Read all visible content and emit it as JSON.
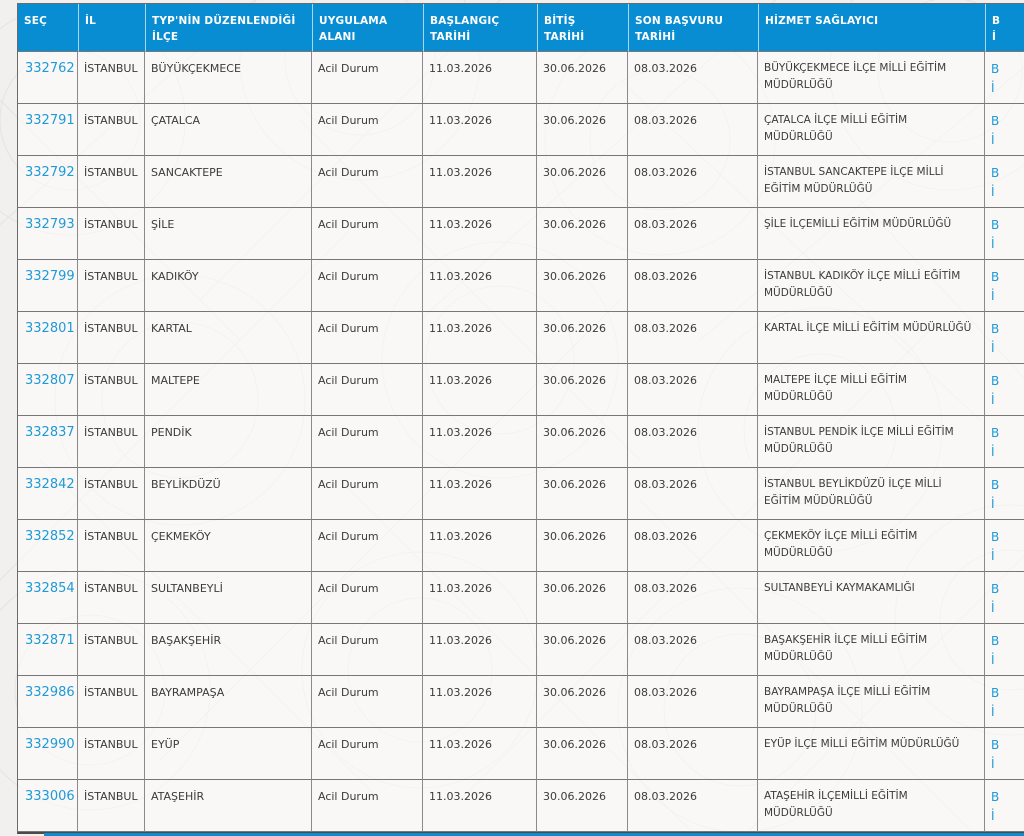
{
  "accent": {
    "header_blue": "#088dd2",
    "link_blue": "#1f9ad7",
    "bottom_bar_color": "#088dd2"
  },
  "table": {
    "columns": [
      {
        "label": "SEÇ"
      },
      {
        "label": "İL"
      },
      {
        "label": "TYP'NİN DÜZENLENDİĞİ\nİLÇE"
      },
      {
        "label": "UYGULAMA\nALANI"
      },
      {
        "label": "BAŞLANGIÇ\nTARİHİ"
      },
      {
        "label": "BİTİŞ\nTARİHİ"
      },
      {
        "label": "SON BAŞVURU\nTARİHİ"
      },
      {
        "label": "HİZMET SAĞLAYICI"
      },
      {
        "label": "B\nİ"
      }
    ],
    "rows": [
      {
        "sec": "332762",
        "il": "İSTANBUL",
        "ilce": "BÜYÜKÇEKMECE",
        "uygulama_alani": "Acil Durum",
        "baslangic": "11.03.2026",
        "bitis": "30.06.2026",
        "son_basvuru": "08.03.2026",
        "hizmet_saglayici": "BÜYÜKÇEKMECE İLÇE MİLLİ EĞİTİM MÜDÜRLÜĞÜ",
        "action1": "B",
        "action2": "İ"
      },
      {
        "sec": "332791",
        "il": "İSTANBUL",
        "ilce": "ÇATALCA",
        "uygulama_alani": "Acil Durum",
        "baslangic": "11.03.2026",
        "bitis": "30.06.2026",
        "son_basvuru": "08.03.2026",
        "hizmet_saglayici": "ÇATALCA İLÇE MİLLİ EĞİTİM MÜDÜRLÜĞÜ",
        "action1": "B",
        "action2": "İ"
      },
      {
        "sec": "332792",
        "il": "İSTANBUL",
        "ilce": "SANCAKTEPE",
        "uygulama_alani": "Acil Durum",
        "baslangic": "11.03.2026",
        "bitis": "30.06.2026",
        "son_basvuru": "08.03.2026",
        "hizmet_saglayici": "İSTANBUL SANCAKTEPE İLÇE MİLLİ EĞİTİM MÜDÜRLÜĞÜ",
        "action1": "B",
        "action2": "İ"
      },
      {
        "sec": "332793",
        "il": "İSTANBUL",
        "ilce": "ŞİLE",
        "uygulama_alani": "Acil Durum",
        "baslangic": "11.03.2026",
        "bitis": "30.06.2026",
        "son_basvuru": "08.03.2026",
        "hizmet_saglayici": "ŞİLE İLÇEMİLLİ EĞİTİM MÜDÜRLÜĞÜ",
        "action1": "B",
        "action2": "İ"
      },
      {
        "sec": "332799",
        "il": "İSTANBUL",
        "ilce": "KADIKÖY",
        "uygulama_alani": "Acil Durum",
        "baslangic": "11.03.2026",
        "bitis": "30.06.2026",
        "son_basvuru": "08.03.2026",
        "hizmet_saglayici": "İSTANBUL KADIKÖY İLÇE MİLLİ EĞİTİM MÜDÜRLÜĞÜ",
        "action1": "B",
        "action2": "İ"
      },
      {
        "sec": "332801",
        "il": "İSTANBUL",
        "ilce": "KARTAL",
        "uygulama_alani": "Acil Durum",
        "baslangic": "11.03.2026",
        "bitis": "30.06.2026",
        "son_basvuru": "08.03.2026",
        "hizmet_saglayici": "KARTAL İLÇE MİLLİ EĞİTİM MÜDÜRLÜĞÜ",
        "action1": "B",
        "action2": "İ"
      },
      {
        "sec": "332807",
        "il": "İSTANBUL",
        "ilce": "MALTEPE",
        "uygulama_alani": "Acil Durum",
        "baslangic": "11.03.2026",
        "bitis": "30.06.2026",
        "son_basvuru": "08.03.2026",
        "hizmet_saglayici": "MALTEPE İLÇE MİLLİ EĞİTİM MÜDÜRLÜĞÜ",
        "action1": "B",
        "action2": "İ"
      },
      {
        "sec": "332837",
        "il": "İSTANBUL",
        "ilce": "PENDİK",
        "uygulama_alani": "Acil Durum",
        "baslangic": "11.03.2026",
        "bitis": "30.06.2026",
        "son_basvuru": "08.03.2026",
        "hizmet_saglayici": "İSTANBUL PENDİK İLÇE MİLLİ EĞİTİM MÜDÜRLÜĞÜ",
        "action1": "B",
        "action2": "İ"
      },
      {
        "sec": "332842",
        "il": "İSTANBUL",
        "ilce": "BEYLİKDÜZÜ",
        "uygulama_alani": "Acil Durum",
        "baslangic": "11.03.2026",
        "bitis": "30.06.2026",
        "son_basvuru": "08.03.2026",
        "hizmet_saglayici": "İSTANBUL BEYLİKDÜZÜ İLÇE MİLLİ EĞİTİM MÜDÜRLÜĞÜ",
        "action1": "B",
        "action2": "İ"
      },
      {
        "sec": "332852",
        "il": "İSTANBUL",
        "ilce": "ÇEKMEKÖY",
        "uygulama_alani": "Acil Durum",
        "baslangic": "11.03.2026",
        "bitis": "30.06.2026",
        "son_basvuru": "08.03.2026",
        "hizmet_saglayici": "ÇEKMEKÖY İLÇE MİLLİ EĞİTİM MÜDÜRLÜĞÜ",
        "action1": "B",
        "action2": "İ"
      },
      {
        "sec": "332854",
        "il": "İSTANBUL",
        "ilce": "SULTANBEYLİ",
        "uygulama_alani": "Acil Durum",
        "baslangic": "11.03.2026",
        "bitis": "30.06.2026",
        "son_basvuru": "08.03.2026",
        "hizmet_saglayici": "SULTANBEYLİ KAYMAKAMLIĞI",
        "action1": "B",
        "action2": "İ"
      },
      {
        "sec": "332871",
        "il": "İSTANBUL",
        "ilce": "BAŞAKŞEHİR",
        "uygulama_alani": "Acil Durum",
        "baslangic": "11.03.2026",
        "bitis": "30.06.2026",
        "son_basvuru": "08.03.2026",
        "hizmet_saglayici": "BAŞAKŞEHİR İLÇE MİLLİ EĞİTİM MÜDÜRLÜĞÜ",
        "action1": "B",
        "action2": "İ"
      },
      {
        "sec": "332986",
        "il": "İSTANBUL",
        "ilce": "BAYRAMPAŞA",
        "uygulama_alani": "Acil Durum",
        "baslangic": "11.03.2026",
        "bitis": "30.06.2026",
        "son_basvuru": "08.03.2026",
        "hizmet_saglayici": "BAYRAMPAŞA İLÇE MİLLİ EĞİTİM MÜDÜRLÜĞÜ",
        "action1": "B",
        "action2": "İ"
      },
      {
        "sec": "332990",
        "il": "İSTANBUL",
        "ilce": "EYÜP",
        "uygulama_alani": "Acil Durum",
        "baslangic": "11.03.2026",
        "bitis": "30.06.2026",
        "son_basvuru": "08.03.2026",
        "hizmet_saglayici": "EYÜP İLÇE MİLLİ EĞİTİM MÜDÜRLÜĞÜ",
        "action1": "B",
        "action2": "İ"
      },
      {
        "sec": "333006",
        "il": "İSTANBUL",
        "ilce": "ATAŞEHİR",
        "uygulama_alani": "Acil Durum",
        "baslangic": "11.03.2026",
        "bitis": "30.06.2026",
        "son_basvuru": "08.03.2026",
        "hizmet_saglayici": "ATAŞEHİR İLÇEMİLLİ EĞİTİM MÜDÜRLÜĞÜ",
        "action1": "B",
        "action2": "İ"
      }
    ]
  }
}
